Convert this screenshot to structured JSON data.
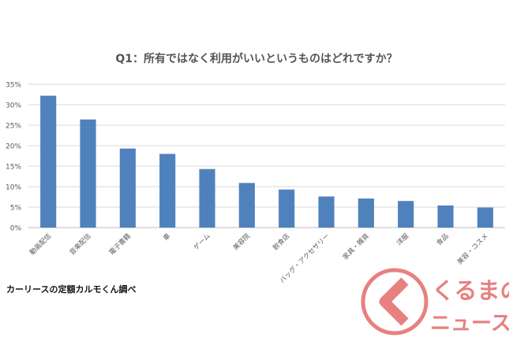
{
  "chart_data": {
    "type": "bar",
    "title": "Q1：所有ではなく利用がいいというものはどれですか？",
    "categories": [
      "動画配信",
      "音楽配信",
      "電子書籍",
      "車",
      "ゲーム",
      "美容院",
      "飲食店",
      "バッグ・アクセサリー",
      "家具・雑貨",
      "洋服",
      "食品",
      "美容・コスメ"
    ],
    "values": [
      32.2,
      26.4,
      19.3,
      18.0,
      14.3,
      10.9,
      9.3,
      7.6,
      7.1,
      6.5,
      5.4,
      4.9
    ],
    "y_ticks": [
      "0%",
      "5%",
      "10%",
      "15%",
      "20%",
      "25%",
      "30%",
      "35%"
    ],
    "ylim": [
      0,
      35
    ],
    "grid": true,
    "bar_color": "#4f81bd"
  },
  "source": "カーリースの定額カルモくん調べ",
  "logo": {
    "line1": "くるまの",
    "line2": "ニュース",
    "color": "#e46a6a"
  }
}
